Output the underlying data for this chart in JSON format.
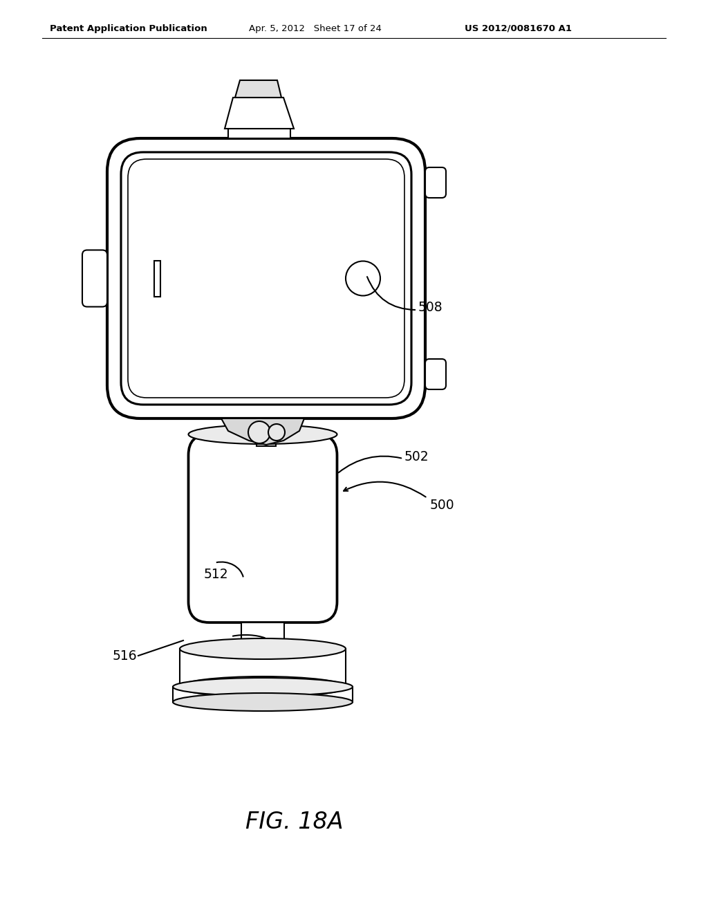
{
  "background_color": "#ffffff",
  "header_left": "Patent Application Publication",
  "header_center": "Apr. 5, 2012   Sheet 17 of 24",
  "header_right": "US 2012/0081670 A1",
  "figure_label": "FIG. 18A",
  "line_color": "#000000",
  "line_width": 1.5
}
